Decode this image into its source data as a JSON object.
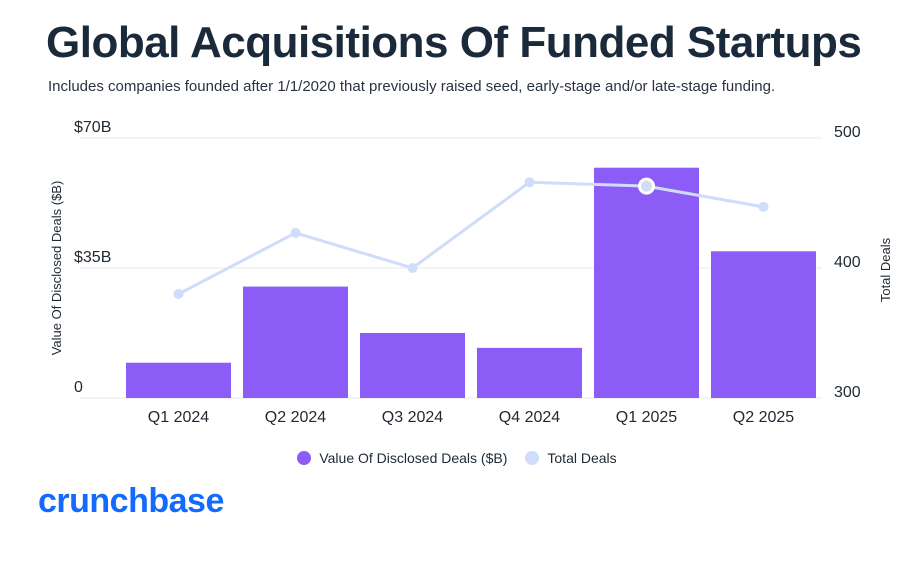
{
  "title": "Global Acquisitions Of Funded Startups",
  "subtitle": "Includes companies founded after 1/1/2020 that previously raised seed, early-stage and/or late-stage funding.",
  "brand": {
    "name": "crunchbase",
    "color": "#146aff"
  },
  "chart_data": {
    "type": "bar",
    "categories": [
      "Q1 2024",
      "Q2 2024",
      "Q3 2024",
      "Q4 2024",
      "Q1 2025",
      "Q2 2025"
    ],
    "series": [
      {
        "name": "Value Of Disclosed Deals ($B)",
        "type": "bar",
        "axis": "left",
        "values": [
          9.5,
          30,
          17.5,
          13.5,
          62,
          39.5
        ],
        "color": "#8b5cf6"
      },
      {
        "name": "Total Deals",
        "type": "line",
        "axis": "right",
        "values": [
          380,
          427,
          400,
          466,
          463,
          447
        ],
        "color": "#cfdcfa"
      }
    ],
    "highlight_point": {
      "series": "Total Deals",
      "category": "Q1 2025"
    },
    "ylabel": "Value Of Disclosed Deals ($B)",
    "y2label": "Total Deals",
    "ylim": [
      0,
      70
    ],
    "y2lim": [
      300,
      500
    ],
    "yticks": [
      "0",
      "$35B",
      "$70B"
    ],
    "yticks_values": [
      0,
      35,
      70
    ],
    "y2ticks": [
      "300",
      "400",
      "500"
    ],
    "y2ticks_values": [
      300,
      400,
      500
    ],
    "grid": true,
    "legend": "bottom-center"
  }
}
